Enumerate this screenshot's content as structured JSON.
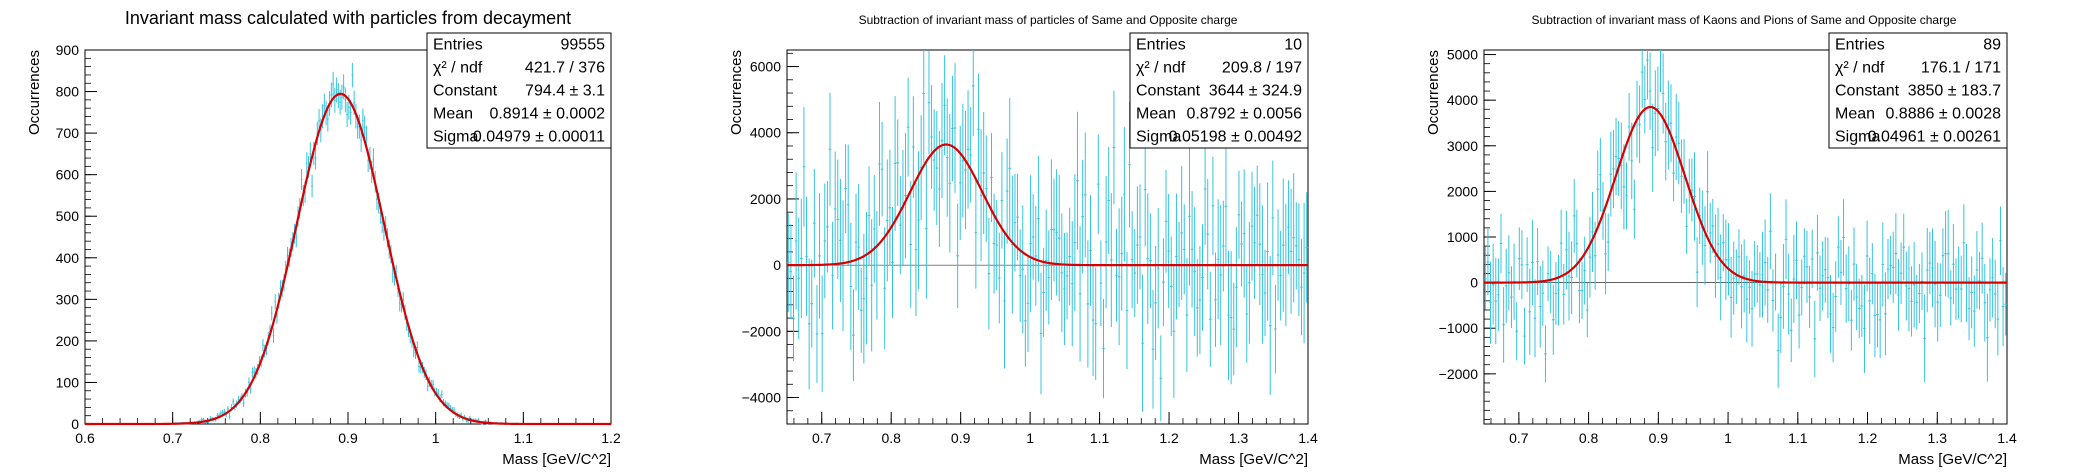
{
  "colors": {
    "data": "#35c4e0",
    "fit": "#d80000",
    "axis": "#000000",
    "background": "#ffffff"
  },
  "chart_data": [
    {
      "type": "histogram",
      "title": "Invariant mass calculated with particles from decayment",
      "xlabel": "Mass [GeV/C^2]",
      "ylabel": "Occurrences",
      "xlim": [
        0.6,
        1.2
      ],
      "ylim": [
        0,
        900
      ],
      "xticks": [
        "0.6",
        "0.7",
        "0.8",
        "0.9",
        "1",
        "1.1",
        "1.2"
      ],
      "yticks": [
        "0",
        "100",
        "200",
        "300",
        "400",
        "500",
        "600",
        "700",
        "800",
        "900"
      ],
      "grid": false,
      "stats_box": {
        "placement": "top-right",
        "rows": [
          {
            "label": "Entries",
            "value": "99555"
          },
          {
            "label": "χ² / ndf",
            "value": "421.7 / 376"
          },
          {
            "label": "Constant",
            "value": "794.4 ± 3.1"
          },
          {
            "label": "Mean",
            "value": "0.8914 ± 0.0002"
          },
          {
            "label": "Sigma",
            "value": "0.04979 ± 0.00011"
          }
        ]
      },
      "fit": {
        "function": "gaus",
        "constant": 794.4,
        "mean": 0.8914,
        "sigma": 0.04979
      },
      "bins": {
        "min": 0.6,
        "max": 1.2,
        "count": 300,
        "noise": 0.035,
        "noise_floor": 2,
        "seed": 17
      }
    },
    {
      "type": "histogram",
      "title": "Subtraction of invariant mass of particles of Same and Opposite charge",
      "xlabel": "Mass [GeV/C^2]",
      "ylabel": "Occurrences",
      "xlim": [
        0.65,
        1.4
      ],
      "ylim": [
        -4800,
        6500
      ],
      "xticks": [
        "0.7",
        "0.8",
        "0.9",
        "1",
        "1.1",
        "1.2",
        "1.3",
        "1.4"
      ],
      "yticks": [
        "−4000",
        "−2000",
        "0",
        "2000",
        "4000",
        "6000"
      ],
      "grid": false,
      "stats_box": {
        "placement": "top-right",
        "rows": [
          {
            "label": "Entries",
            "value": "10"
          },
          {
            "label": "χ² / ndf",
            "value": "209.8 / 197"
          },
          {
            "label": "Constant",
            "value": "3644 ± 324.9"
          },
          {
            "label": "Mean",
            "value": "0.8792 ± 0.0056"
          },
          {
            "label": "Sigma",
            "value": "0.05198 ± 0.00492"
          }
        ]
      },
      "fit": {
        "function": "gaus",
        "constant": 3644,
        "mean": 0.8792,
        "sigma": 0.05198
      },
      "bins": {
        "min": 0.65,
        "max": 1.4,
        "count": 200,
        "noise": 1700,
        "noise_floor": 0,
        "seed": 41
      }
    },
    {
      "type": "histogram",
      "title": "Subtraction of invariant mass of Kaons and Pions of Same and Opposite charge",
      "xlabel": "Mass [GeV/C^2]",
      "ylabel": "Occurrences",
      "xlim": [
        0.65,
        1.4
      ],
      "ylim": [
        -3100,
        5100
      ],
      "xticks": [
        "0.7",
        "0.8",
        "0.9",
        "1",
        "1.1",
        "1.2",
        "1.3",
        "1.4"
      ],
      "yticks": [
        "−2000",
        "−1000",
        "0",
        "1000",
        "2000",
        "3000",
        "4000",
        "5000"
      ],
      "grid": false,
      "stats_box": {
        "placement": "top-right",
        "rows": [
          {
            "label": "Entries",
            "value": "89"
          },
          {
            "label": "χ² / ndf",
            "value": "176.1 / 171"
          },
          {
            "label": "Constant",
            "value": "3850 ± 183.7"
          },
          {
            "label": "Mean",
            "value": "0.8886 ± 0.0028"
          },
          {
            "label": "Sigma",
            "value": "0.04961 ± 0.00261"
          }
        ]
      },
      "fit": {
        "function": "gaus",
        "constant": 3850,
        "mean": 0.8886,
        "sigma": 0.04961
      },
      "bins": {
        "min": 0.65,
        "max": 1.4,
        "count": 200,
        "noise": 780,
        "noise_floor": 0,
        "seed": 73
      }
    }
  ]
}
